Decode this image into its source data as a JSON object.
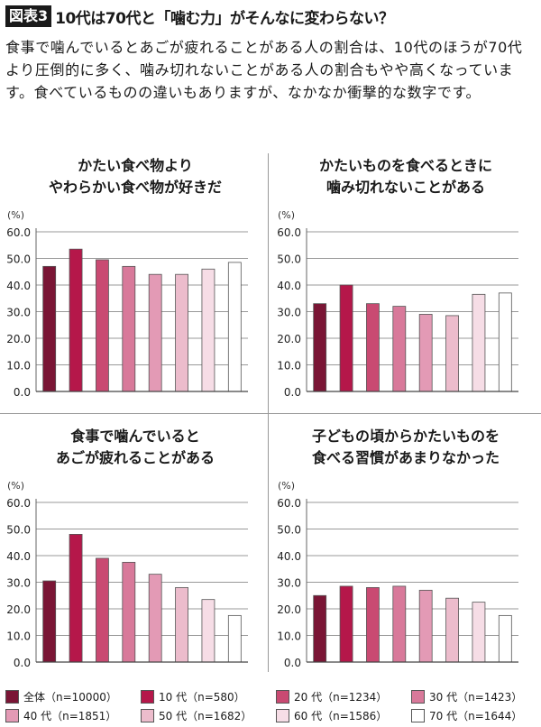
{
  "header": {
    "tag": "図表3",
    "title": "10代は70代と「噛む力」がそんなに変わらない？"
  },
  "description": "食事で噛んでいるとあごが疲れることがある人の割合は、10代のほうが70代より圧倒的に多く、噛み切れないことがある人の割合もやや高くなっています。食べているものの違いもありますが、なかなか衝撃的な数字です。",
  "legend": [
    {
      "label": "全体（n=10000）",
      "color": "#7a1535"
    },
    {
      "label": "10 代（n=580）",
      "color": "#b5174a"
    },
    {
      "label": "20 代（n=1234）",
      "color": "#c94a72"
    },
    {
      "label": "30 代（n=1423）",
      "color": "#d8799a"
    },
    {
      "label": "40 代（n=1851）",
      "color": "#e39ab5"
    },
    {
      "label": "50 代（n=1682）",
      "color": "#ecbccc"
    },
    {
      "label": "60 代（n=1586）",
      "color": "#f6dde6"
    },
    {
      "label": "70 代（n=1644）",
      "color": "#ffffff"
    }
  ],
  "chart_data": [
    {
      "type": "bar",
      "title_lines": [
        "かたい食べ物より",
        "やわらかい食べ物が好きだ"
      ],
      "unit": "(%)",
      "ylim": [
        0,
        60
      ],
      "yticks": [
        "0.0",
        "10.0",
        "20.0",
        "30.0",
        "40.0",
        "50.0",
        "60.0"
      ],
      "values": [
        47.0,
        53.5,
        49.5,
        47.0,
        44.0,
        44.0,
        46.0,
        48.5
      ]
    },
    {
      "type": "bar",
      "title_lines": [
        "かたいものを食べるときに",
        "噛み切れないことがある"
      ],
      "unit": "(%)",
      "ylim": [
        0,
        60
      ],
      "yticks": [
        "0.0",
        "10.0",
        "20.0",
        "30.0",
        "40.0",
        "50.0",
        "60.0"
      ],
      "values": [
        33.0,
        40.0,
        33.0,
        32.0,
        29.0,
        28.5,
        36.5,
        37.0
      ]
    },
    {
      "type": "bar",
      "title_lines": [
        "食事で噛んでいると",
        "あごが疲れることがある"
      ],
      "unit": "(%)",
      "ylim": [
        0,
        60
      ],
      "yticks": [
        "0.0",
        "10.0",
        "20.0",
        "30.0",
        "40.0",
        "50.0",
        "60.0"
      ],
      "values": [
        30.5,
        48.0,
        39.0,
        37.5,
        33.0,
        28.0,
        23.5,
        17.5
      ]
    },
    {
      "type": "bar",
      "title_lines": [
        "子どもの頃からかたいものを",
        "食べる習慣があまりなかった"
      ],
      "unit": "(%)",
      "ylim": [
        0,
        60
      ],
      "yticks": [
        "0.0",
        "10.0",
        "20.0",
        "30.0",
        "40.0",
        "50.0",
        "60.0"
      ],
      "values": [
        25.0,
        28.5,
        28.0,
        28.5,
        27.0,
        24.0,
        22.5,
        17.5
      ]
    }
  ]
}
